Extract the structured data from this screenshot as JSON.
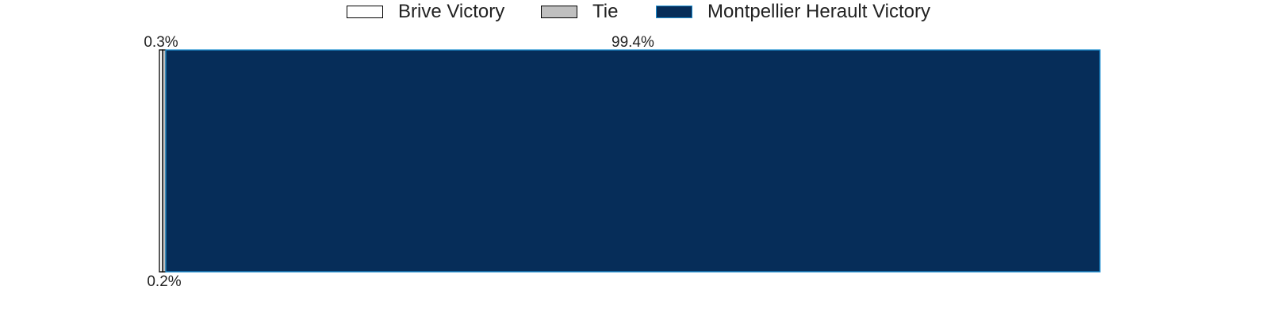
{
  "chart_data": {
    "type": "bar",
    "orientation": "horizontal",
    "stacked": true,
    "categories": [
      ""
    ],
    "series": [
      {
        "name": "Brive Victory",
        "values": [
          0.3
        ],
        "label": "0.3%",
        "color": "#ffffff",
        "edgecolor": "#000000"
      },
      {
        "name": "Tie",
        "values": [
          0.2
        ],
        "label": "0.2%",
        "color": "#bfbfbf",
        "edgecolor": "#000000"
      },
      {
        "name": "Montpellier Herault Victory",
        "values": [
          99.4
        ],
        "label": "99.4%",
        "color": "#062d59",
        "edgecolor": "#1f8fd0"
      }
    ],
    "xlim": [
      0,
      100
    ],
    "axes_visible": false,
    "grid": false,
    "legend_position": "top-center",
    "title": "",
    "xlabel": "",
    "ylabel": ""
  }
}
